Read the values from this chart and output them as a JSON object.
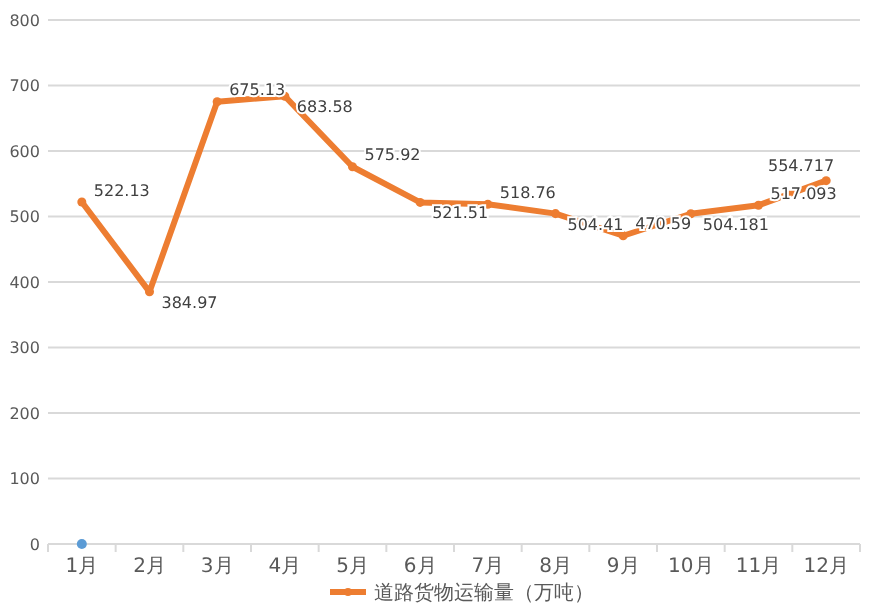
{
  "chart_data": {
    "type": "line",
    "categories": [
      "1月",
      "2月",
      "3月",
      "4月",
      "5月",
      "6月",
      "7月",
      "8月",
      "9月",
      "10月",
      "11月",
      "12月"
    ],
    "series": [
      {
        "name": "道路货物运输量（万吨）",
        "color": "#ed7d31",
        "values": [
          522.13,
          384.97,
          675.13,
          683.58,
          575.92,
          521.51,
          518.76,
          504.41,
          470.59,
          504.181,
          517.093,
          554.717
        ],
        "value_labels": [
          "522.13",
          "384.97",
          "675.13",
          "683.58",
          "575.92",
          "521.51",
          "518.76",
          "504.41",
          "470.59",
          "504.181",
          "517.093",
          "554.717"
        ]
      },
      {
        "type": "scatter",
        "color": "#5b9bd5",
        "values": [
          0,
          null,
          null,
          null,
          null,
          null,
          null,
          null,
          null,
          null,
          null,
          null
        ]
      }
    ],
    "ylim": [
      0,
      800
    ],
    "yticks": [
      0,
      100,
      200,
      300,
      400,
      500,
      600,
      700,
      800
    ],
    "grid": "y",
    "legend": "bottom",
    "marker": "circle"
  }
}
